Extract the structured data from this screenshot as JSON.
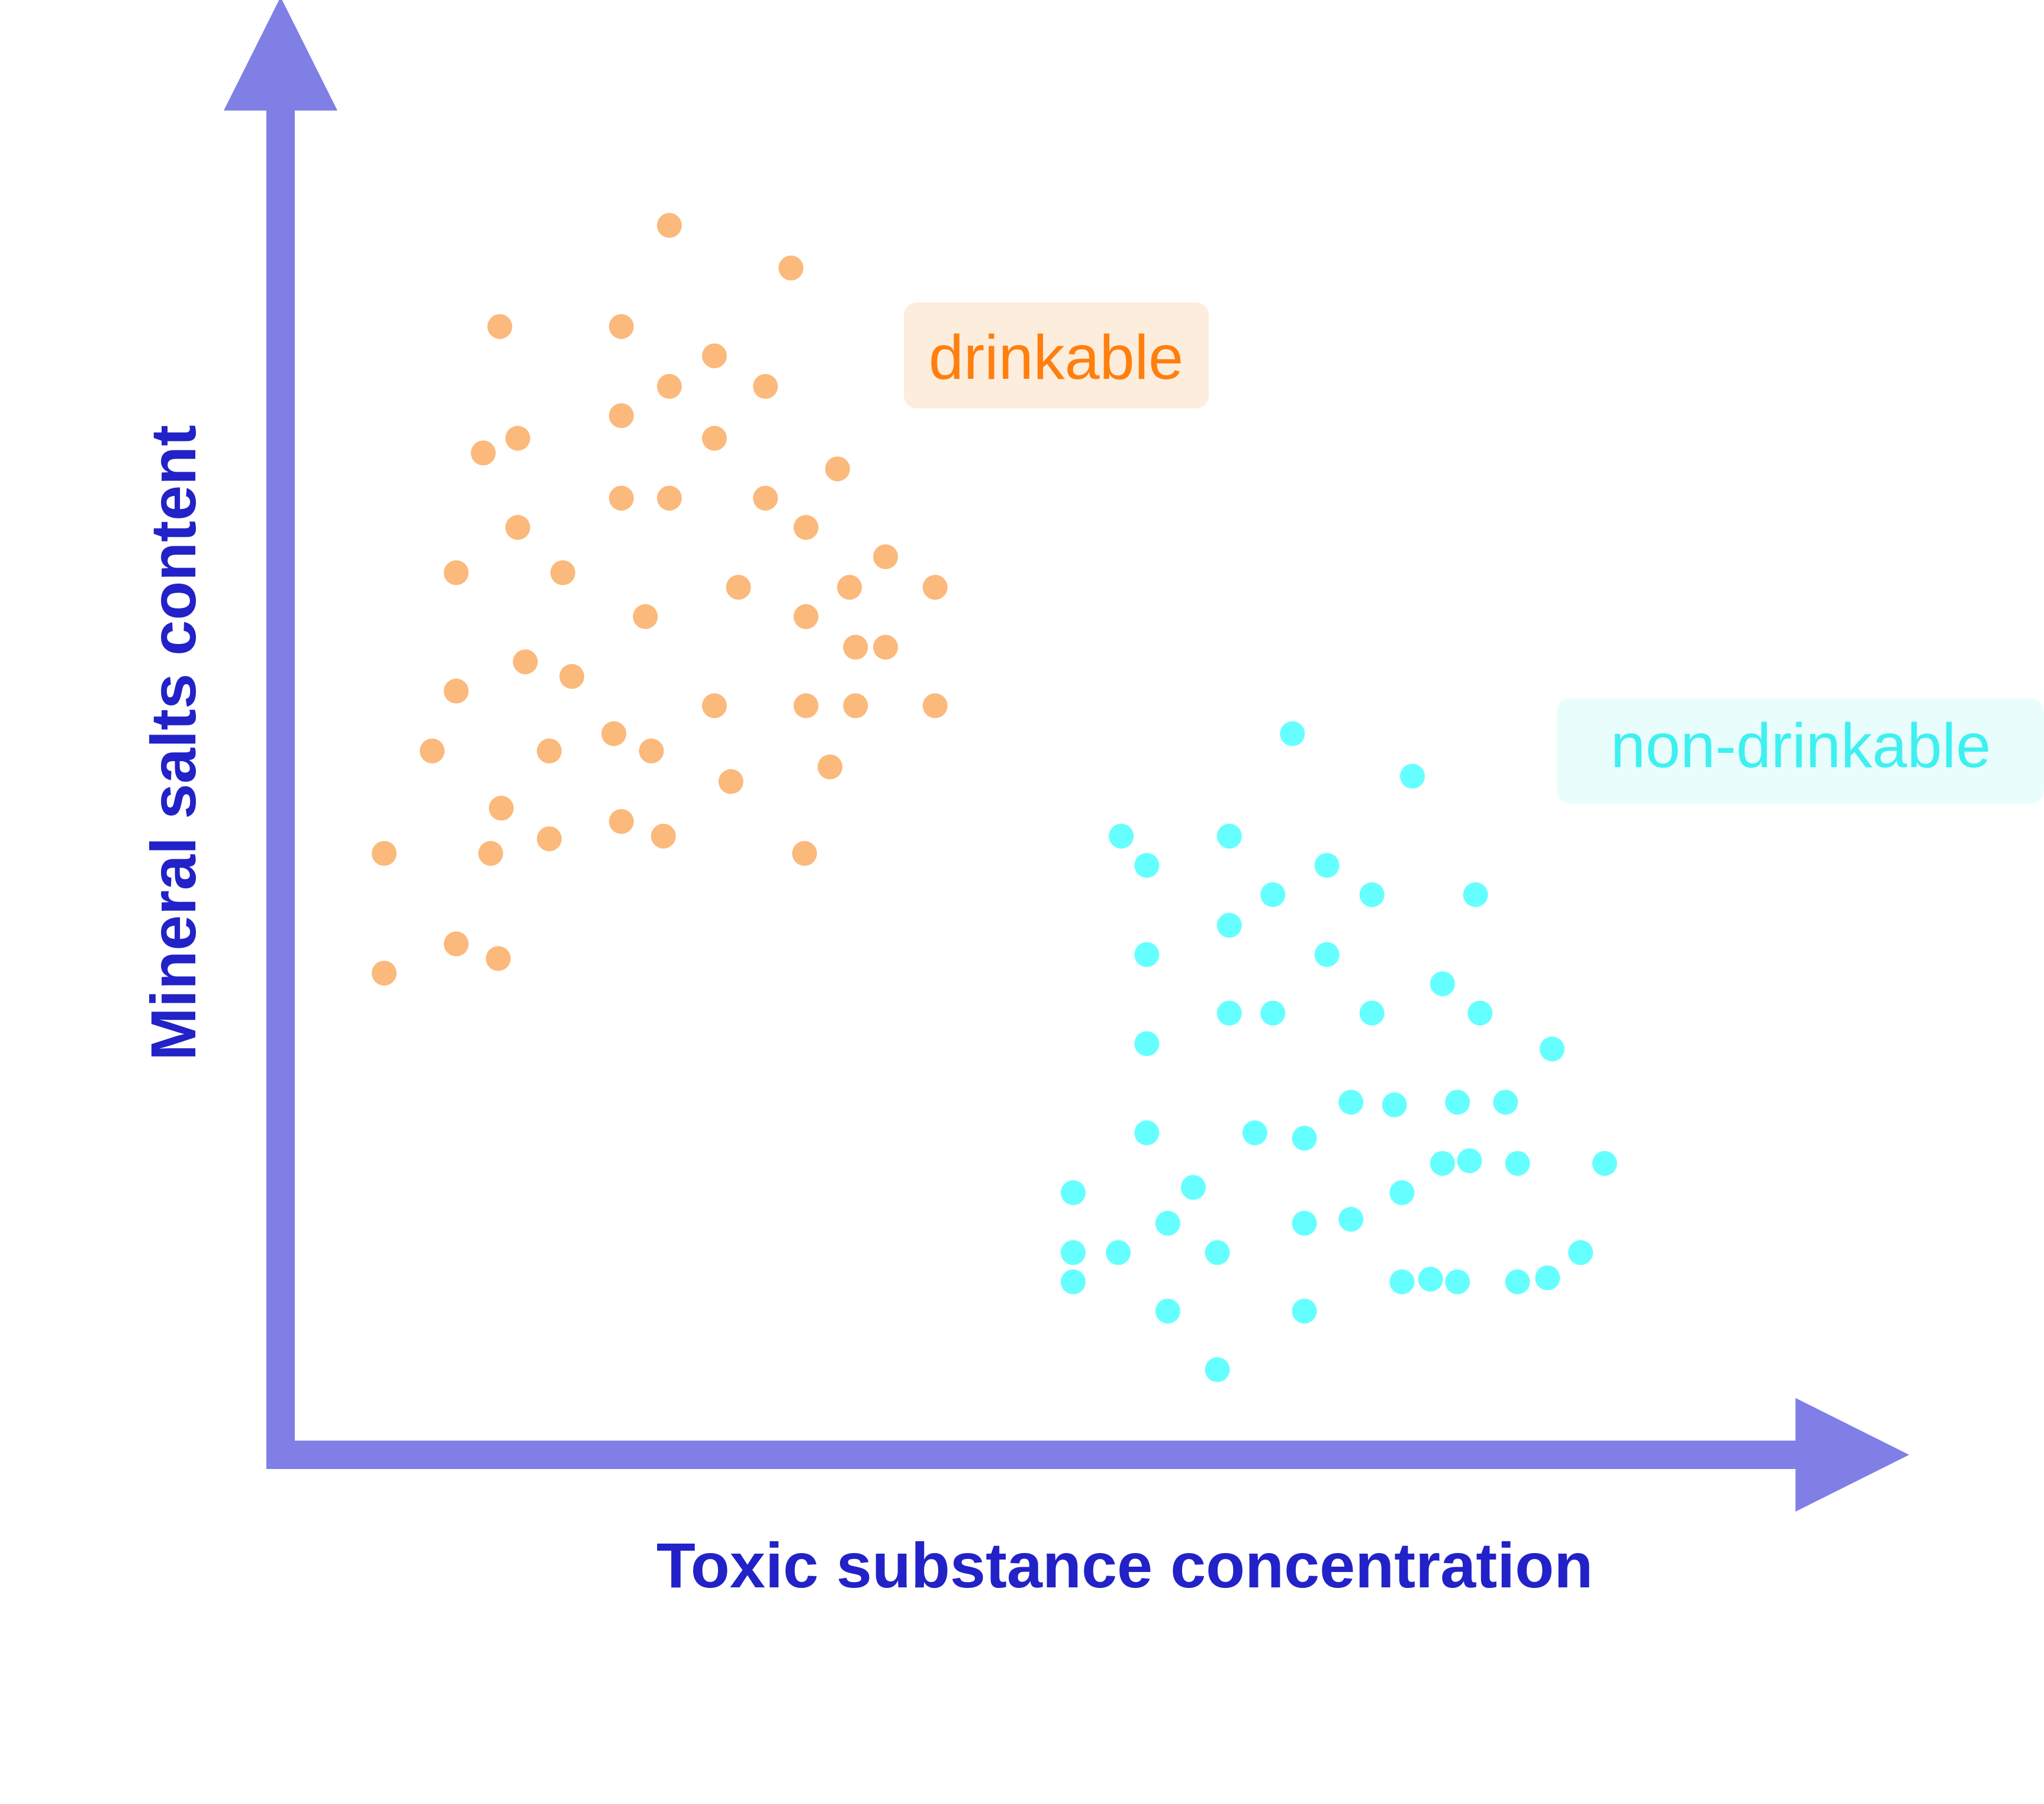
{
  "chart_data": {
    "type": "scatter",
    "title": "",
    "xlabel": "Toxic substance concentration",
    "ylabel": "Mineral salts content",
    "xlim": [
      0,
      100
    ],
    "ylim": [
      0,
      100
    ],
    "grid": false,
    "ticks": false,
    "colors": {
      "axis": "#7f7fe6",
      "axis_title": "#2222c8",
      "drinkable": "#fbb97c",
      "drinkable_label": "#ff7f0e",
      "drinkable_label_bg": "#fdeddc",
      "non_drinkable": "#66ffff",
      "non_drinkable_label": "#3ff0f0",
      "non_drinkable_label_bg": "#eafdfd"
    },
    "series": [
      {
        "name": "drinkable",
        "points": [
          [
            25.9,
            92.4
          ],
          [
            34.0,
            89.2
          ],
          [
            14.6,
            84.8
          ],
          [
            22.7,
            84.8
          ],
          [
            28.9,
            82.6
          ],
          [
            25.9,
            80.3
          ],
          [
            32.3,
            80.3
          ],
          [
            22.7,
            78.1
          ],
          [
            28.9,
            76.4
          ],
          [
            15.8,
            76.4
          ],
          [
            13.5,
            75.3
          ],
          [
            37.1,
            74.1
          ],
          [
            22.7,
            71.9
          ],
          [
            25.9,
            71.9
          ],
          [
            32.3,
            71.9
          ],
          [
            15.8,
            69.7
          ],
          [
            35.0,
            69.7
          ],
          [
            40.3,
            67.5
          ],
          [
            11.7,
            66.3
          ],
          [
            18.8,
            66.3
          ],
          [
            30.5,
            65.2
          ],
          [
            37.9,
            65.2
          ],
          [
            43.6,
            65.2
          ],
          [
            24.3,
            63.0
          ],
          [
            35.0,
            63.0
          ],
          [
            38.3,
            60.7
          ],
          [
            40.3,
            60.7
          ],
          [
            16.3,
            59.6
          ],
          [
            19.4,
            58.5
          ],
          [
            11.7,
            57.4
          ],
          [
            28.9,
            56.3
          ],
          [
            35.0,
            56.3
          ],
          [
            38.3,
            56.3
          ],
          [
            43.6,
            56.3
          ],
          [
            22.2,
            54.2
          ],
          [
            10.1,
            52.9
          ],
          [
            17.9,
            52.9
          ],
          [
            24.7,
            52.9
          ],
          [
            36.6,
            51.7
          ],
          [
            30.0,
            50.6
          ],
          [
            14.7,
            48.6
          ],
          [
            22.7,
            47.6
          ],
          [
            25.5,
            46.5
          ],
          [
            6.9,
            45.2
          ],
          [
            14.0,
            45.2
          ],
          [
            17.9,
            46.3
          ],
          [
            34.9,
            45.2
          ],
          [
            11.7,
            38.4
          ],
          [
            14.5,
            37.3
          ],
          [
            6.9,
            36.2
          ]
        ]
      },
      {
        "name": "non-drinkable",
        "points": [
          [
            67.4,
            54.2
          ],
          [
            75.4,
            51.0
          ],
          [
            56.0,
            46.5
          ],
          [
            63.2,
            46.5
          ],
          [
            57.7,
            44.3
          ],
          [
            69.7,
            44.3
          ],
          [
            66.1,
            42.1
          ],
          [
            72.7,
            42.1
          ],
          [
            79.6,
            42.1
          ],
          [
            63.2,
            39.8
          ],
          [
            57.7,
            37.6
          ],
          [
            69.7,
            37.6
          ],
          [
            77.4,
            35.4
          ],
          [
            63.2,
            33.2
          ],
          [
            66.1,
            33.2
          ],
          [
            72.7,
            33.2
          ],
          [
            79.9,
            33.2
          ],
          [
            57.7,
            30.9
          ],
          [
            84.7,
            30.5
          ],
          [
            71.3,
            26.5
          ],
          [
            74.2,
            26.3
          ],
          [
            78.4,
            26.5
          ],
          [
            81.6,
            26.5
          ],
          [
            57.7,
            24.2
          ],
          [
            64.9,
            24.2
          ],
          [
            68.2,
            23.8
          ],
          [
            77.4,
            21.9
          ],
          [
            79.2,
            22.1
          ],
          [
            82.4,
            21.9
          ],
          [
            88.2,
            21.9
          ],
          [
            52.8,
            19.7
          ],
          [
            60.8,
            20.1
          ],
          [
            74.7,
            19.7
          ],
          [
            59.1,
            17.4
          ],
          [
            68.2,
            17.4
          ],
          [
            71.3,
            17.7
          ],
          [
            52.8,
            15.2
          ],
          [
            55.8,
            15.2
          ],
          [
            62.4,
            15.2
          ],
          [
            86.6,
            15.2
          ],
          [
            74.7,
            13.0
          ],
          [
            76.6,
            13.2
          ],
          [
            78.4,
            13.0
          ],
          [
            82.4,
            13.0
          ],
          [
            84.4,
            13.3
          ],
          [
            52.8,
            13.0
          ],
          [
            59.1,
            10.8
          ],
          [
            68.2,
            10.8
          ],
          [
            62.4,
            6.4
          ]
        ]
      }
    ],
    "annotations": [
      {
        "text": "drinkable",
        "series": "drinkable",
        "x": 48.2,
        "y": 89.2
      },
      {
        "text": "non-drinkable",
        "series": "non-drinkable",
        "x": 89.9,
        "y": 60.3
      }
    ]
  }
}
